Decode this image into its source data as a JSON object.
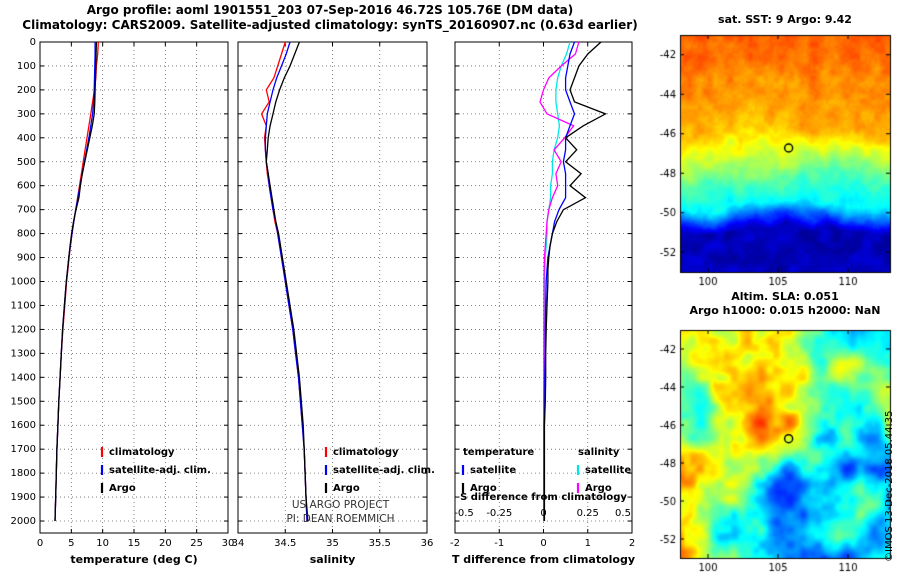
{
  "header": {
    "title": "Argo profile: aoml 1901551_203 07-Sep-2016 46.72S 105.76E (DM data)",
    "subtitle": "Climatology: CARS2009. Satellite-adjusted climatology: synTS_20160907.nc (0.63d earlier)"
  },
  "credit": "©IMOS 13-Dec-2018 05.44.35",
  "chart_data": {
    "type": "line",
    "orientation": "vertical-profile",
    "depths": [
      0,
      50,
      100,
      150,
      200,
      250,
      300,
      350,
      400,
      450,
      500,
      550,
      600,
      650,
      700,
      750,
      800,
      850,
      900,
      950,
      1000,
      1100,
      1200,
      1300,
      1400,
      1500,
      1600,
      1700,
      1800,
      1900,
      2000
    ],
    "depth_axis": {
      "lim": [
        0,
        2050
      ],
      "ticks": [
        0,
        100,
        200,
        300,
        400,
        500,
        600,
        700,
        800,
        900,
        1000,
        1100,
        1200,
        1300,
        1400,
        1500,
        1600,
        1700,
        1800,
        1900,
        2000
      ]
    },
    "plots": [
      {
        "id": "temperature",
        "xlabel": "temperature (deg C)",
        "xlim": [
          0,
          30
        ],
        "xticks": [
          0,
          5,
          10,
          15,
          20,
          25,
          30
        ],
        "xtick_labels": [
          "0",
          "5",
          "10",
          "15",
          "20",
          "25",
          "30"
        ],
        "show_depth_labels": true,
        "legend": true,
        "series": [
          {
            "name": "climatology",
            "color": "#ff0000",
            "values": [
              9.3,
              9.2,
              9.0,
              8.9,
              8.7,
              8.4,
              8.1,
              7.8,
              7.5,
              7.2,
              6.9,
              6.6,
              6.3,
              6.0,
              5.7,
              5.4,
              5.1,
              4.85,
              4.65,
              4.45,
              4.25,
              3.95,
              3.65,
              3.4,
              3.2,
              3.0,
              2.85,
              2.7,
              2.6,
              2.5,
              2.4
            ]
          },
          {
            "name": "satellite-adj. clim.",
            "color": "#0000ff",
            "values": [
              8.8,
              8.8,
              8.75,
              8.7,
              8.65,
              8.55,
              8.4,
              8.1,
              7.8,
              7.45,
              7.1,
              6.75,
              6.4,
              6.05,
              5.7,
              5.4,
              5.1,
              4.85,
              4.6,
              4.4,
              4.2,
              3.9,
              3.6,
              3.4,
              3.2,
              3.0,
              2.85,
              2.7,
              2.6,
              2.5,
              2.4
            ]
          },
          {
            "name": "Argo",
            "color": "#000000",
            "values": [
              9.0,
              8.95,
              8.9,
              8.85,
              8.8,
              8.75,
              8.65,
              8.35,
              7.95,
              7.55,
              7.15,
              6.75,
              6.45,
              6.2,
              5.75,
              5.35,
              5.05,
              4.8,
              4.6,
              4.4,
              4.2,
              3.9,
              3.6,
              3.4,
              3.2,
              3.0,
              2.85,
              2.7,
              2.6,
              2.5,
              2.4
            ]
          }
        ]
      },
      {
        "id": "salinity",
        "xlabel": "salinity",
        "xlim": [
          34,
          36
        ],
        "xticks": [
          34,
          34.5,
          35,
          35.5,
          36
        ],
        "xtick_labels": [
          "34",
          "34.5",
          "35",
          "35.5",
          "36"
        ],
        "show_depth_labels": false,
        "legend": true,
        "annotations": [
          "US ARGO PROJECT",
          "PI: DEAN ROEMMICH"
        ],
        "series": [
          {
            "name": "climatology",
            "color": "#ff0000",
            "values": [
              34.5,
              34.46,
              34.42,
              34.38,
              34.3,
              34.33,
              34.25,
              34.3,
              34.28,
              34.29,
              34.3,
              34.31,
              34.33,
              34.35,
              34.37,
              34.39,
              34.42,
              34.44,
              34.46,
              34.48,
              34.5,
              34.54,
              34.58,
              34.61,
              34.64,
              34.66,
              34.68,
              34.7,
              34.71,
              34.72,
              34.73
            ]
          },
          {
            "name": "satellite-adj. clim.",
            "color": "#0000ff",
            "values": [
              34.55,
              34.51,
              34.46,
              34.41,
              34.37,
              34.34,
              34.31,
              34.3,
              34.29,
              34.29,
              34.3,
              34.32,
              34.33,
              34.35,
              34.37,
              34.4,
              34.42,
              34.44,
              34.46,
              34.48,
              34.5,
              34.54,
              34.58,
              34.61,
              34.64,
              34.66,
              34.68,
              34.7,
              34.71,
              34.72,
              34.73
            ]
          },
          {
            "name": "Argo",
            "color": "#000000",
            "values": [
              34.65,
              34.6,
              34.55,
              34.49,
              34.44,
              34.4,
              34.37,
              34.34,
              34.32,
              34.31,
              34.3,
              34.32,
              34.34,
              34.36,
              34.38,
              34.4,
              34.43,
              34.45,
              34.47,
              34.49,
              34.51,
              34.55,
              34.59,
              34.62,
              34.65,
              34.67,
              34.69,
              34.7,
              34.71,
              34.72,
              34.74
            ]
          }
        ]
      },
      {
        "id": "difference",
        "xlabel": "T difference from climatology",
        "xlim": [
          -2,
          2
        ],
        "xticks": [
          -2,
          -1,
          0,
          1,
          2
        ],
        "xtick_labels": [
          "-2",
          "-1",
          "0",
          "1",
          "2"
        ],
        "show_depth_labels": false,
        "top_scale": {
          "label": "S difference from climatology",
          "tick_labels": [
            "-0.5",
            "-0.25",
            "0",
            "0.25",
            "0.5"
          ]
        },
        "legend_columns": [
          {
            "header": "temperature",
            "entries": [
              {
                "name": "satellite",
                "color": "#0000ff"
              },
              {
                "name": "Argo",
                "color": "#000000"
              }
            ]
          },
          {
            "header": "salinity",
            "entries": [
              {
                "name": "satellite",
                "color": "#00e6e6"
              },
              {
                "name": "Argo",
                "color": "#ff00ff"
              }
            ]
          }
        ],
        "series": [
          {
            "name": "salinity satellite",
            "color": "#00e6e6",
            "x_scale": 4,
            "values": [
              0.15,
              0.13,
              0.1,
              0.08,
              0.07,
              0.07,
              0.08,
              0.09,
              0.08,
              0.06,
              0.05,
              0.05,
              0.04,
              0.04,
              0.03,
              0.02,
              0.02,
              0.015,
              0.01,
              0.008,
              0.006,
              0.005,
              0.004,
              0.003,
              0.003,
              0.002,
              0.002,
              0.002,
              0.001,
              0.001,
              0.001
            ]
          },
          {
            "name": "salinity Argo",
            "color": "#ff00ff",
            "x_scale": 4,
            "values": [
              0.2,
              0.18,
              0.1,
              0.03,
              0.0,
              -0.02,
              0.02,
              0.17,
              0.12,
              0.06,
              0.1,
              0.07,
              0.08,
              0.05,
              0.03,
              0.02,
              0.015,
              0.01,
              0.005,
              0.004,
              0.003,
              0.003,
              0.002,
              0.002,
              0.002,
              0.001,
              0.001,
              0.001,
              0.001,
              0.001,
              0.001
            ]
          },
          {
            "name": "temperature satellite",
            "color": "#0000ff",
            "values": [
              0.7,
              0.6,
              0.55,
              0.5,
              0.5,
              0.6,
              0.7,
              0.6,
              0.5,
              0.5,
              0.45,
              0.5,
              0.5,
              0.5,
              0.35,
              0.25,
              0.2,
              0.15,
              0.1,
              0.08,
              0.06,
              0.05,
              0.04,
              0.04,
              0.03,
              0.03,
              0.02,
              0.02,
              0.02,
              0.02,
              0.02
            ]
          },
          {
            "name": "temperature Argo",
            "color": "#000000",
            "values": [
              1.3,
              1.0,
              0.8,
              0.7,
              0.6,
              0.7,
              1.4,
              0.9,
              0.5,
              0.75,
              0.5,
              0.85,
              0.6,
              0.95,
              0.45,
              0.3,
              0.2,
              0.15,
              0.12,
              0.1,
              0.1,
              0.08,
              0.06,
              0.05,
              0.05,
              0.04,
              0.02,
              0.02,
              0.02,
              0.02,
              0.02
            ]
          }
        ]
      }
    ]
  },
  "maps": [
    {
      "title": "sat. SST: 9 Argo: 9.42",
      "lon_range": [
        98,
        113
      ],
      "lat_range": [
        -41,
        -53
      ],
      "lon_ticks": [
        100,
        105,
        110
      ],
      "lat_ticks": [
        -42,
        -44,
        -46,
        -48,
        -50,
        -52
      ],
      "argo_position": {
        "lon": 105.76,
        "lat": -46.72
      },
      "field": "sst",
      "seed": 7
    },
    {
      "title_lines": [
        "Altim. SLA: 0.051",
        "Argo h1000: 0.015 h2000: NaN"
      ],
      "lon_range": [
        98,
        113
      ],
      "lat_range": [
        -41,
        -53
      ],
      "lon_ticks": [
        100,
        105,
        110
      ],
      "lat_ticks": [
        -42,
        -44,
        -46,
        -48,
        -50,
        -52
      ],
      "argo_position": {
        "lon": 105.76,
        "lat": -46.72
      },
      "field": "sla",
      "seed": 3
    }
  ]
}
